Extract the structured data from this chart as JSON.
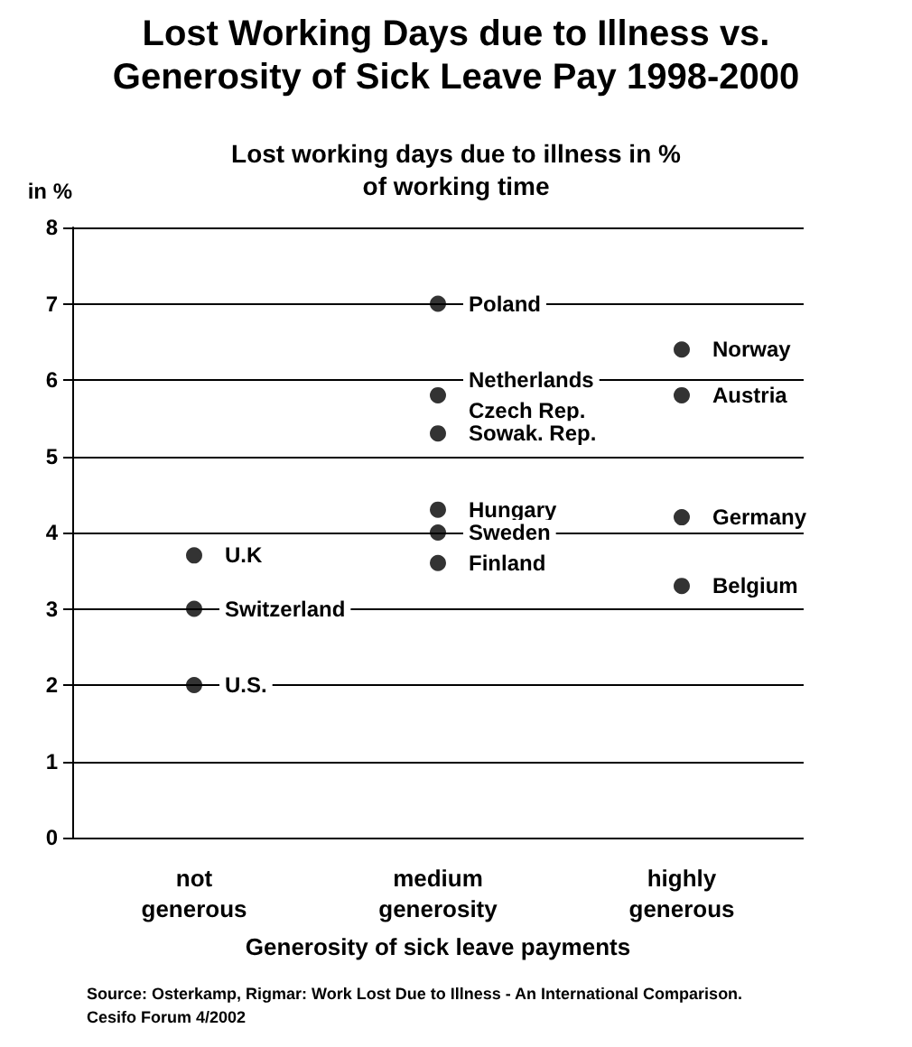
{
  "chart_data": {
    "type": "scatter",
    "title": "Lost Working Days due to Illness vs.\nGenerosity of Sick Leave Pay 1998-2000",
    "subtitle": "Lost working days due to illness in %\nof working time",
    "ylabel": "in %",
    "xlabel": "Generosity of sick leave payments",
    "categories": [
      "not\ngenerous",
      "medium\ngenerosity",
      "highly\ngenerous"
    ],
    "series": [
      {
        "color": "#000000",
        "x": [
          "not\ngenerous",
          "not\ngenerous",
          "not\ngenerous",
          "medium\ngenerosity",
          "medium\ngenerosity",
          "medium\ngenerosity",
          "medium\ngenerosity",
          "medium\ngenerosity",
          "medium\ngenerosity",
          "medium\ngenerosity",
          "highly\ngenerous",
          "highly\ngenerous",
          "highly\ngenerous",
          "highly\ngenerous"
        ],
        "values": [
          3.7,
          3.0,
          2.0,
          7.0,
          null,
          5.8,
          5.3,
          4.3,
          4.0,
          3.6,
          6.4,
          5.8,
          4.2,
          3.3
        ]
      }
    ],
    "ylim": [
      0,
      8
    ],
    "yticks": [
      0,
      1,
      2,
      3,
      4,
      5,
      6,
      7,
      8
    ],
    "grid": "y",
    "marker": "circle",
    "annotations": [
      {
        "text": "U.K",
        "x": "not\ngenerous",
        "y": 3.7
      },
      {
        "text": "Switzerland",
        "x": "not\ngenerous",
        "y": 3.0
      },
      {
        "text": "U.S.",
        "x": "not\ngenerous",
        "y": 2.0
      },
      {
        "text": "Poland",
        "x": "medium\ngenerosity",
        "y": 7.0
      },
      {
        "text": "Netherlands",
        "x": "medium\ngenerosity",
        "y": 5.8
      },
      {
        "text": "Czech Rep.",
        "x": "medium\ngenerosity",
        "y": 5.8
      },
      {
        "text": "Sowak. Rep.",
        "x": "medium\ngenerosity",
        "y": 5.3
      },
      {
        "text": "Hungary",
        "x": "medium\ngenerosity",
        "y": 4.3
      },
      {
        "text": "Sweden",
        "x": "medium\ngenerosity",
        "y": 4.0
      },
      {
        "text": "Finland",
        "x": "medium\ngenerosity",
        "y": 3.6
      },
      {
        "text": "Norway",
        "x": "highly\ngenerous",
        "y": 6.4
      },
      {
        "text": "Austria",
        "x": "highly\ngenerous",
        "y": 5.8
      },
      {
        "text": "Germany",
        "x": "highly\ngenerous",
        "y": 4.2
      },
      {
        "text": "Belgium",
        "x": "highly\ngenerous",
        "y": 3.3
      },
      "Source: Osterkamp, Rigmar: Work Lost Due to Illness - An International Comparison.\nCesifo Forum 4/2002"
    ]
  }
}
